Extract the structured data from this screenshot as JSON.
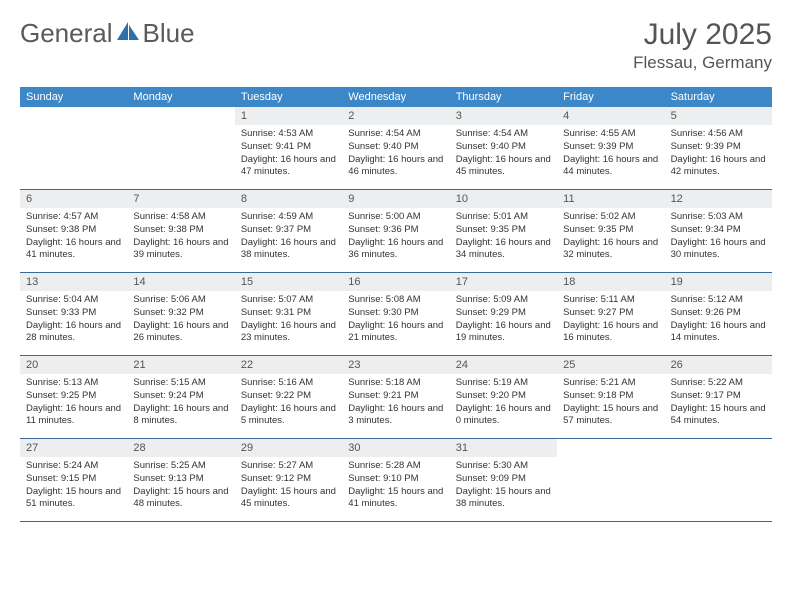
{
  "logo": {
    "text1": "General",
    "text2": "Blue"
  },
  "title": "July 2025",
  "location": "Flessau, Germany",
  "colors": {
    "header_bar": "#3b87c8",
    "header_text": "#ffffff",
    "daynum_bg": "#eceeef",
    "week_border": "#3b6a9a",
    "body_text": "#333333",
    "title_text": "#555555",
    "logo_text": "#5a5a5a",
    "logo_accent": "#2f6fa8"
  },
  "day_names": [
    "Sunday",
    "Monday",
    "Tuesday",
    "Wednesday",
    "Thursday",
    "Friday",
    "Saturday"
  ],
  "weeks": [
    [
      {
        "n": "",
        "s": "",
        "t": "",
        "d": ""
      },
      {
        "n": "",
        "s": "",
        "t": "",
        "d": ""
      },
      {
        "n": "1",
        "s": "Sunrise: 4:53 AM",
        "t": "Sunset: 9:41 PM",
        "d": "Daylight: 16 hours and 47 minutes."
      },
      {
        "n": "2",
        "s": "Sunrise: 4:54 AM",
        "t": "Sunset: 9:40 PM",
        "d": "Daylight: 16 hours and 46 minutes."
      },
      {
        "n": "3",
        "s": "Sunrise: 4:54 AM",
        "t": "Sunset: 9:40 PM",
        "d": "Daylight: 16 hours and 45 minutes."
      },
      {
        "n": "4",
        "s": "Sunrise: 4:55 AM",
        "t": "Sunset: 9:39 PM",
        "d": "Daylight: 16 hours and 44 minutes."
      },
      {
        "n": "5",
        "s": "Sunrise: 4:56 AM",
        "t": "Sunset: 9:39 PM",
        "d": "Daylight: 16 hours and 42 minutes."
      }
    ],
    [
      {
        "n": "6",
        "s": "Sunrise: 4:57 AM",
        "t": "Sunset: 9:38 PM",
        "d": "Daylight: 16 hours and 41 minutes."
      },
      {
        "n": "7",
        "s": "Sunrise: 4:58 AM",
        "t": "Sunset: 9:38 PM",
        "d": "Daylight: 16 hours and 39 minutes."
      },
      {
        "n": "8",
        "s": "Sunrise: 4:59 AM",
        "t": "Sunset: 9:37 PM",
        "d": "Daylight: 16 hours and 38 minutes."
      },
      {
        "n": "9",
        "s": "Sunrise: 5:00 AM",
        "t": "Sunset: 9:36 PM",
        "d": "Daylight: 16 hours and 36 minutes."
      },
      {
        "n": "10",
        "s": "Sunrise: 5:01 AM",
        "t": "Sunset: 9:35 PM",
        "d": "Daylight: 16 hours and 34 minutes."
      },
      {
        "n": "11",
        "s": "Sunrise: 5:02 AM",
        "t": "Sunset: 9:35 PM",
        "d": "Daylight: 16 hours and 32 minutes."
      },
      {
        "n": "12",
        "s": "Sunrise: 5:03 AM",
        "t": "Sunset: 9:34 PM",
        "d": "Daylight: 16 hours and 30 minutes."
      }
    ],
    [
      {
        "n": "13",
        "s": "Sunrise: 5:04 AM",
        "t": "Sunset: 9:33 PM",
        "d": "Daylight: 16 hours and 28 minutes."
      },
      {
        "n": "14",
        "s": "Sunrise: 5:06 AM",
        "t": "Sunset: 9:32 PM",
        "d": "Daylight: 16 hours and 26 minutes."
      },
      {
        "n": "15",
        "s": "Sunrise: 5:07 AM",
        "t": "Sunset: 9:31 PM",
        "d": "Daylight: 16 hours and 23 minutes."
      },
      {
        "n": "16",
        "s": "Sunrise: 5:08 AM",
        "t": "Sunset: 9:30 PM",
        "d": "Daylight: 16 hours and 21 minutes."
      },
      {
        "n": "17",
        "s": "Sunrise: 5:09 AM",
        "t": "Sunset: 9:29 PM",
        "d": "Daylight: 16 hours and 19 minutes."
      },
      {
        "n": "18",
        "s": "Sunrise: 5:11 AM",
        "t": "Sunset: 9:27 PM",
        "d": "Daylight: 16 hours and 16 minutes."
      },
      {
        "n": "19",
        "s": "Sunrise: 5:12 AM",
        "t": "Sunset: 9:26 PM",
        "d": "Daylight: 16 hours and 14 minutes."
      }
    ],
    [
      {
        "n": "20",
        "s": "Sunrise: 5:13 AM",
        "t": "Sunset: 9:25 PM",
        "d": "Daylight: 16 hours and 11 minutes."
      },
      {
        "n": "21",
        "s": "Sunrise: 5:15 AM",
        "t": "Sunset: 9:24 PM",
        "d": "Daylight: 16 hours and 8 minutes."
      },
      {
        "n": "22",
        "s": "Sunrise: 5:16 AM",
        "t": "Sunset: 9:22 PM",
        "d": "Daylight: 16 hours and 5 minutes."
      },
      {
        "n": "23",
        "s": "Sunrise: 5:18 AM",
        "t": "Sunset: 9:21 PM",
        "d": "Daylight: 16 hours and 3 minutes."
      },
      {
        "n": "24",
        "s": "Sunrise: 5:19 AM",
        "t": "Sunset: 9:20 PM",
        "d": "Daylight: 16 hours and 0 minutes."
      },
      {
        "n": "25",
        "s": "Sunrise: 5:21 AM",
        "t": "Sunset: 9:18 PM",
        "d": "Daylight: 15 hours and 57 minutes."
      },
      {
        "n": "26",
        "s": "Sunrise: 5:22 AM",
        "t": "Sunset: 9:17 PM",
        "d": "Daylight: 15 hours and 54 minutes."
      }
    ],
    [
      {
        "n": "27",
        "s": "Sunrise: 5:24 AM",
        "t": "Sunset: 9:15 PM",
        "d": "Daylight: 15 hours and 51 minutes."
      },
      {
        "n": "28",
        "s": "Sunrise: 5:25 AM",
        "t": "Sunset: 9:13 PM",
        "d": "Daylight: 15 hours and 48 minutes."
      },
      {
        "n": "29",
        "s": "Sunrise: 5:27 AM",
        "t": "Sunset: 9:12 PM",
        "d": "Daylight: 15 hours and 45 minutes."
      },
      {
        "n": "30",
        "s": "Sunrise: 5:28 AM",
        "t": "Sunset: 9:10 PM",
        "d": "Daylight: 15 hours and 41 minutes."
      },
      {
        "n": "31",
        "s": "Sunrise: 5:30 AM",
        "t": "Sunset: 9:09 PM",
        "d": "Daylight: 15 hours and 38 minutes."
      },
      {
        "n": "",
        "s": "",
        "t": "",
        "d": ""
      },
      {
        "n": "",
        "s": "",
        "t": "",
        "d": ""
      }
    ]
  ]
}
